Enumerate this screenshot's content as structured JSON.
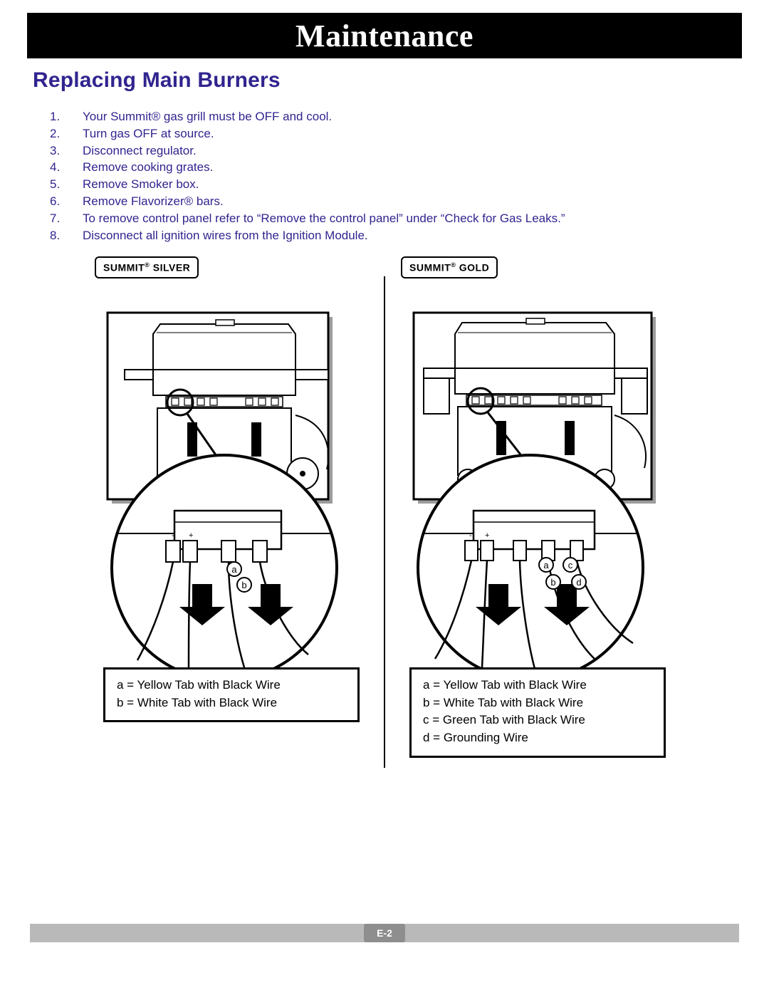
{
  "colors": {
    "heading": "#30248f",
    "titlebar_bg": "#000000",
    "titlebar_text": "#ffffff",
    "footer_bg": "#b9b9b9",
    "footer_badge_bg": "#8e8e8e",
    "footer_badge_text": "#ffffff",
    "border": "#000000",
    "page_bg": "#ffffff"
  },
  "typography": {
    "title_fontsize": 44,
    "heading_fontsize": 30,
    "body_fontsize": 17,
    "legend_fontsize": 17,
    "tag_fontsize": 14
  },
  "title": "Maintenance",
  "section_heading": "Replacing Main Burners",
  "steps": [
    {
      "n": "1.",
      "text": "Your Summit® gas grill must be OFF and cool."
    },
    {
      "n": "2.",
      "text": "Turn gas OFF at source."
    },
    {
      "n": "3.",
      "text": "Disconnect regulator."
    },
    {
      "n": "4.",
      "text": "Remove cooking grates."
    },
    {
      "n": "5.",
      "text": "Remove Smoker box."
    },
    {
      "n": "6.",
      "text": "Remove Flavorizer® bars."
    },
    {
      "n": "7.",
      "text": "To remove control panel refer to “Remove the control panel” under “Check for Gas Leaks.”"
    },
    {
      "n": "8.",
      "text": "Disconnect all ignition wires from the Ignition Module."
    }
  ],
  "diagrams": {
    "silver": {
      "tag_prefix": "SUMMIT",
      "tag_suffix": " SILVER",
      "wire_labels": [
        "a",
        "b"
      ],
      "legend": [
        "a = Yellow Tab with Black Wire",
        "b = White Tab with Black Wire"
      ]
    },
    "gold": {
      "tag_prefix": "SUMMIT",
      "tag_suffix": " GOLD",
      "wire_labels": [
        "a",
        "b",
        "c",
        "d"
      ],
      "legend": [
        "a = Yellow Tab with Black Wire",
        "b = White Tab with Black Wire",
        "c = Green Tab with Black Wire",
        "d = Grounding Wire"
      ]
    }
  },
  "page_number": "E-2"
}
